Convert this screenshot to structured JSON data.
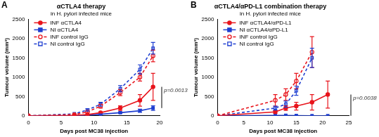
{
  "chart_data": [
    {
      "type": "line",
      "panel": "A",
      "title": "αCTLA4 therapy",
      "subtitle": "in H. pylori infected mice",
      "x_label": "Days post MC38 injection",
      "y_label": "Tumour volume (mm³)",
      "xlim": [
        0,
        20
      ],
      "xticks": [
        0,
        5,
        10,
        15,
        20
      ],
      "ylim": [
        0,
        2500
      ],
      "yticks": [
        0,
        500,
        1000,
        1500,
        2000,
        2500
      ],
      "grid": false,
      "legend": "upper left",
      "annotation": "p=0.0013",
      "series": [
        {
          "name": "INF αCTLA4",
          "color": "#e8141c",
          "marker": "circle",
          "line_style": "solid",
          "x": [
            0,
            7,
            9,
            11,
            14,
            17,
            19
          ],
          "values": [
            0,
            10,
            30,
            80,
            200,
            400,
            750
          ],
          "errors": [
            null,
            null,
            null,
            20,
            60,
            150,
            350
          ]
        },
        {
          "name": "NI αCTLA4",
          "color": "#1f3fd1",
          "marker": "square",
          "line_style": "solid",
          "x": [
            0,
            7,
            9,
            11,
            14,
            17,
            19
          ],
          "values": [
            0,
            5,
            15,
            40,
            80,
            130,
            200
          ],
          "errors": [
            null,
            null,
            null,
            10,
            20,
            40,
            60
          ]
        },
        {
          "name": "INF control IgG",
          "color": "#e8141c",
          "marker": "open_circle",
          "line_style": "dashed",
          "x": [
            0,
            7,
            9,
            11,
            14,
            17,
            19
          ],
          "values": [
            0,
            30,
            100,
            250,
            600,
            1000,
            1550
          ],
          "errors": [
            null,
            null,
            20,
            50,
            80,
            100,
            150
          ]
        },
        {
          "name": "NI control IgG",
          "color": "#1f3fd1",
          "marker": "open_square",
          "line_style": "dashed",
          "x": [
            0,
            7,
            9,
            11,
            14,
            17,
            19
          ],
          "values": [
            0,
            50,
            150,
            300,
            700,
            1200,
            1750
          ],
          "errors": [
            null,
            null,
            30,
            50,
            80,
            120,
            150
          ]
        }
      ]
    },
    {
      "type": "line",
      "panel": "B",
      "title": "αCTLA4/αPD-L1 combination therapy",
      "subtitle": "in H. pylori infected mice",
      "x_label": "Days post MC38 injection",
      "y_label": "Tumour volume (mm³)",
      "xlim": [
        0,
        25
      ],
      "xticks": [
        0,
        5,
        10,
        15,
        20,
        25
      ],
      "ylim": [
        0,
        2500
      ],
      "yticks": [
        0,
        500,
        1000,
        1500,
        2000,
        2500
      ],
      "grid": false,
      "legend": "upper left",
      "annotation": "p=0.0038",
      "series": [
        {
          "name": "INF αCTLA4/αPD-L1",
          "color": "#e8141c",
          "marker": "circle",
          "line_style": "solid",
          "x": [
            0,
            11,
            13,
            15,
            18,
            21
          ],
          "values": [
            0,
            100,
            200,
            250,
            350,
            550
          ],
          "errors": [
            null,
            40,
            60,
            100,
            200,
            350
          ]
        },
        {
          "name": "NI αCTLA4/αPD-L1",
          "color": "#1f3fd1",
          "marker": "square",
          "line_style": "solid",
          "x": [
            0,
            11,
            13,
            15,
            18,
            21
          ],
          "values": [
            0,
            10,
            10,
            5,
            0,
            0
          ],
          "errors": [
            null,
            null,
            null,
            null,
            null,
            null
          ]
        },
        {
          "name": "INF control IgG",
          "color": "#e8141c",
          "marker": "open_circle",
          "line_style": "dashed",
          "x": [
            0,
            11,
            13,
            15,
            18
          ],
          "values": [
            0,
            400,
            550,
            900,
            1650
          ],
          "errors": [
            null,
            150,
            150,
            200,
            400
          ]
        },
        {
          "name": "NI control IgG",
          "color": "#1f3fd1",
          "marker": "open_square",
          "line_style": "dashed",
          "x": [
            0,
            11,
            13,
            15,
            18
          ],
          "values": [
            0,
            200,
            300,
            650,
            1500
          ],
          "errors": [
            null,
            50,
            80,
            120,
            250
          ]
        }
      ]
    }
  ]
}
